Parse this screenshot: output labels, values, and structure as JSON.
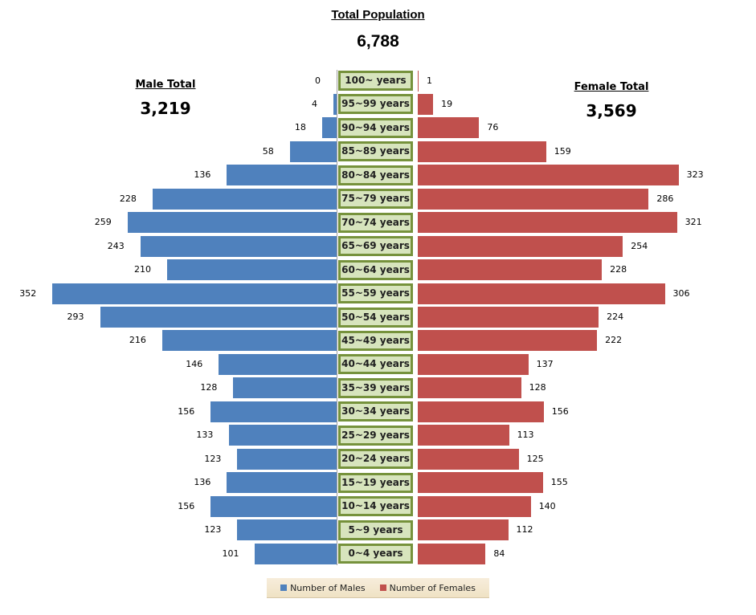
{
  "header": {
    "total_title": "Total Population",
    "total_value": "6,788",
    "male_title": "Male Total",
    "male_value": "3,219",
    "female_title": "Female Total",
    "female_value": "3,569"
  },
  "colors": {
    "male": "#4f81bd",
    "female": "#c0504d",
    "age_box_fill": "#d7e4bd",
    "age_box_border": "#76923c"
  },
  "legend": {
    "male_label": "Number of Males",
    "female_label": "Number of Females"
  },
  "chart_data": {
    "type": "bar",
    "orientation": "horizontal-population-pyramid",
    "title": "Total Population",
    "categories": [
      "100~ years",
      "95~99 years",
      "90~94 years",
      "85~89 years",
      "80~84 years",
      "75~79 years",
      "70~74 years",
      "65~69 years",
      "60~64 years",
      "55~59 years",
      "50~54 years",
      "45~49 years",
      "40~44 years",
      "35~39 years",
      "30~34 years",
      "25~29 years",
      "20~24 years",
      "15~19 years",
      "10~14 years",
      "5~9 years",
      "0~4 years"
    ],
    "series": [
      {
        "name": "Number of Males",
        "side": "left",
        "values": [
          0,
          4,
          18,
          58,
          136,
          228,
          259,
          243,
          210,
          352,
          293,
          216,
          146,
          128,
          156,
          133,
          123,
          136,
          156,
          123,
          101
        ]
      },
      {
        "name": "Number of Females",
        "side": "right",
        "values": [
          1,
          19,
          76,
          159,
          323,
          286,
          321,
          254,
          228,
          306,
          224,
          222,
          137,
          128,
          156,
          113,
          125,
          155,
          140,
          112,
          84
        ]
      }
    ],
    "totals": {
      "total": 6788,
      "male": 3219,
      "female": 3569
    },
    "xlabel": "",
    "ylabel": "",
    "grid": false,
    "legend_position": "bottom"
  }
}
